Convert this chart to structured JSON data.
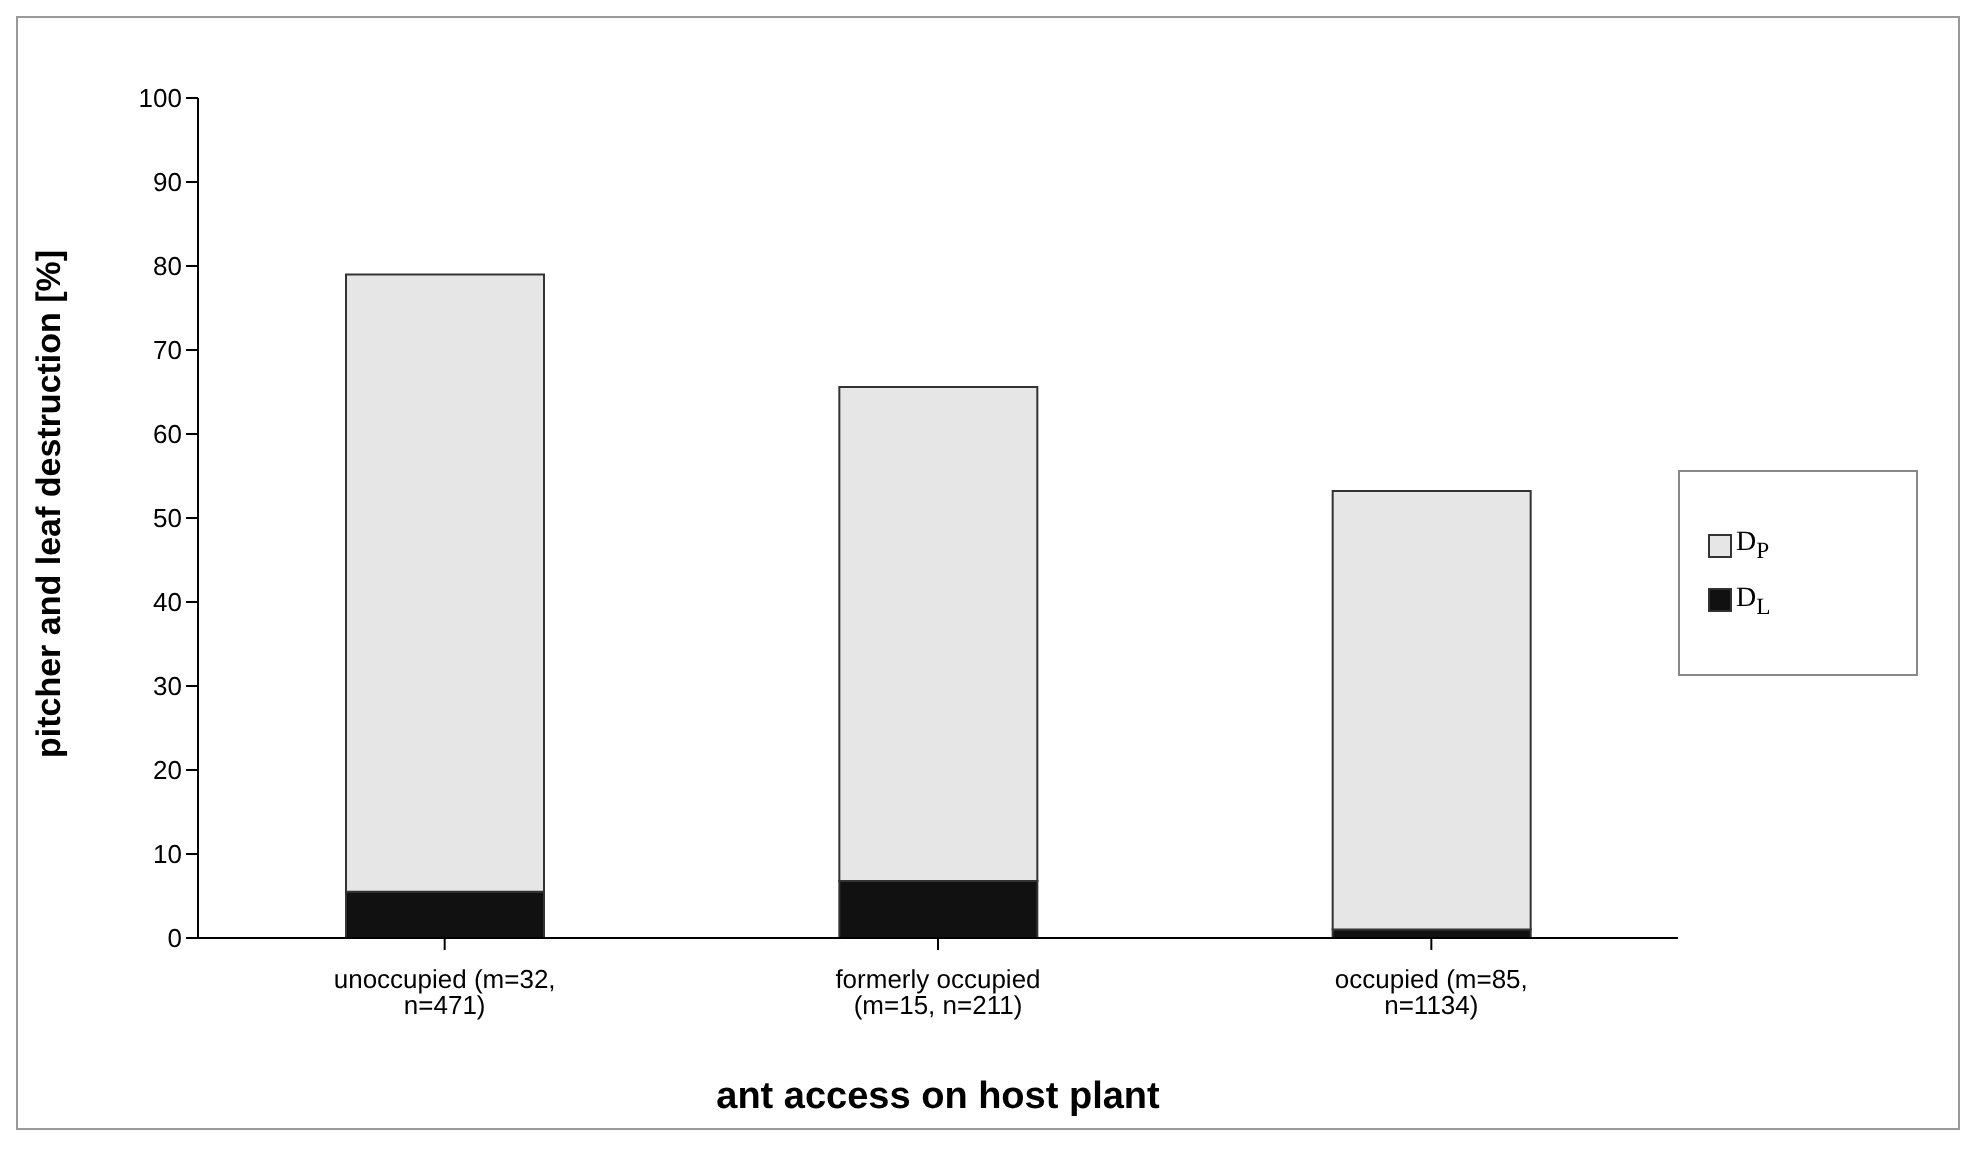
{
  "chart_data": {
    "type": "bar",
    "stacked": true,
    "xlabel": "ant access on host plant",
    "ylabel": "pitcher and leaf destruction [%]",
    "categories": [
      "unoccupied (m=32, n=471)",
      "formerly occupied (m=15, n=211)",
      "occupied (m=85, n=1134)"
    ],
    "series": [
      {
        "name": "D$_{L}$",
        "color": "#111111",
        "values": [
          5.5,
          6.8,
          1.0
        ]
      },
      {
        "name": "D$_{P}$",
        "color": "#e6e6e6",
        "values": [
          73.5,
          58.8,
          52.2
        ]
      }
    ],
    "ylim": [
      0,
      100
    ],
    "yticks": [
      0,
      10,
      20,
      30,
      40,
      50,
      60,
      70,
      80,
      90,
      100
    ],
    "legend": "right"
  }
}
